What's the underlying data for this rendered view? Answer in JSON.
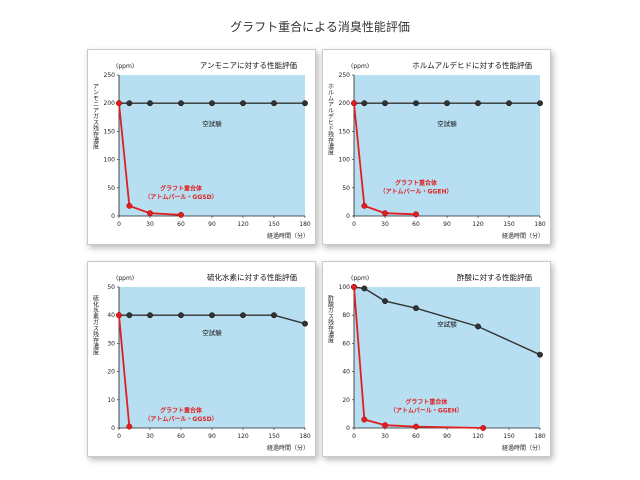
{
  "page_title": "グラフト重合による消臭性能評価",
  "chart_data": [
    {
      "type": "line",
      "title": "アンモニアに対する性能評価",
      "unit": "(ppm)",
      "ylabel": "アンモニアガス残存濃度",
      "xlabel": "経過時間（分）",
      "xlim": [
        0,
        180
      ],
      "ylim": [
        0,
        250
      ],
      "xticks": [
        0,
        30,
        60,
        90,
        120,
        150,
        180
      ],
      "yticks": [
        0,
        50,
        100,
        150,
        200,
        250
      ],
      "series": [
        {
          "name": "空試験",
          "color": "#333333",
          "x": [
            0,
            10,
            30,
            60,
            90,
            120,
            150,
            180
          ],
          "y": [
            200,
            200,
            200,
            200,
            200,
            200,
            200,
            200
          ]
        },
        {
          "name": "グラフト重合体（アトムバール・GGSD）",
          "color": "#e02020",
          "x": [
            0,
            10,
            30,
            60
          ],
          "y": [
            200,
            18,
            5,
            2
          ]
        }
      ],
      "annotations": [
        {
          "text": "空試験",
          "x": 90,
          "y": 160,
          "series": 0
        },
        {
          "text": "グラフト重合体",
          "x": 60,
          "y": 45,
          "series": 1
        },
        {
          "text": "（アトムバール・GGSD）",
          "x": 60,
          "y": 30,
          "series": 1
        }
      ]
    },
    {
      "type": "line",
      "title": "ホルムアルデヒドに対する性能評価",
      "unit": "(ppm)",
      "ylabel": "ホルムアルデヒド残存濃度",
      "xlabel": "経過時間（分）",
      "xlim": [
        0,
        180
      ],
      "ylim": [
        0,
        250
      ],
      "xticks": [
        0,
        30,
        60,
        90,
        120,
        150,
        180
      ],
      "yticks": [
        0,
        50,
        100,
        150,
        200,
        250
      ],
      "series": [
        {
          "name": "空試験",
          "color": "#333333",
          "x": [
            0,
            10,
            30,
            60,
            90,
            120,
            150,
            180
          ],
          "y": [
            200,
            200,
            200,
            200,
            200,
            200,
            200,
            200
          ]
        },
        {
          "name": "グラフト重合体（アトムバール・GGEH）",
          "color": "#e02020",
          "x": [
            0,
            10,
            30,
            60
          ],
          "y": [
            200,
            18,
            5,
            3
          ]
        }
      ],
      "annotations": [
        {
          "text": "空試験",
          "x": 90,
          "y": 160,
          "series": 0
        },
        {
          "text": "グラフト重合体",
          "x": 60,
          "y": 55,
          "series": 1
        },
        {
          "text": "（アトムバール・GGEH）",
          "x": 60,
          "y": 40,
          "series": 1
        }
      ]
    },
    {
      "type": "line",
      "title": "硫化水素に対する性能評価",
      "unit": "(ppm)",
      "ylabel": "硫化水素ガス残存濃度",
      "xlabel": "経過時間（分）",
      "xlim": [
        0,
        180
      ],
      "ylim": [
        0,
        50
      ],
      "xticks": [
        0,
        30,
        60,
        90,
        120,
        150,
        180
      ],
      "yticks": [
        0,
        10,
        20,
        30,
        40,
        50
      ],
      "series": [
        {
          "name": "空試験",
          "color": "#333333",
          "x": [
            0,
            10,
            30,
            60,
            90,
            120,
            150,
            180
          ],
          "y": [
            40,
            40,
            40,
            40,
            40,
            40,
            40,
            37
          ]
        },
        {
          "name": "グラフト重合体（アトムバール・GGSD）",
          "color": "#e02020",
          "x": [
            0,
            10
          ],
          "y": [
            40,
            0.5
          ]
        }
      ],
      "annotations": [
        {
          "text": "空試験",
          "x": 90,
          "y": 33,
          "series": 0
        },
        {
          "text": "グラフト重合体",
          "x": 60,
          "y": 5.5,
          "series": 1
        },
        {
          "text": "（アトムバール・GGSD）",
          "x": 60,
          "y": 2.5,
          "series": 1
        }
      ]
    },
    {
      "type": "line",
      "title": "酢酸に対する性能評価",
      "unit": "(ppm)",
      "ylabel": "酢酸ガス残存濃度",
      "xlabel": "経過時間（分）",
      "xlim": [
        0,
        180
      ],
      "ylim": [
        0,
        100
      ],
      "xticks": [
        0,
        30,
        60,
        90,
        120,
        150,
        180
      ],
      "yticks": [
        0,
        20,
        40,
        60,
        80,
        100
      ],
      "series": [
        {
          "name": "空試験",
          "color": "#333333",
          "x": [
            0,
            10,
            30,
            60,
            120,
            180
          ],
          "y": [
            100,
            99,
            90,
            85,
            72,
            52
          ]
        },
        {
          "name": "グラフト重合体（アトムバール・GGEH）",
          "color": "#e02020",
          "x": [
            0,
            10,
            30,
            60,
            125
          ],
          "y": [
            100,
            6,
            2,
            1,
            0
          ]
        }
      ],
      "annotations": [
        {
          "text": "空試験",
          "x": 90,
          "y": 72,
          "series": 0
        },
        {
          "text": "グラフト重合体",
          "x": 70,
          "y": 17,
          "series": 1
        },
        {
          "text": "（アトムバール・GGEH）",
          "x": 70,
          "y": 11,
          "series": 1
        }
      ]
    }
  ]
}
